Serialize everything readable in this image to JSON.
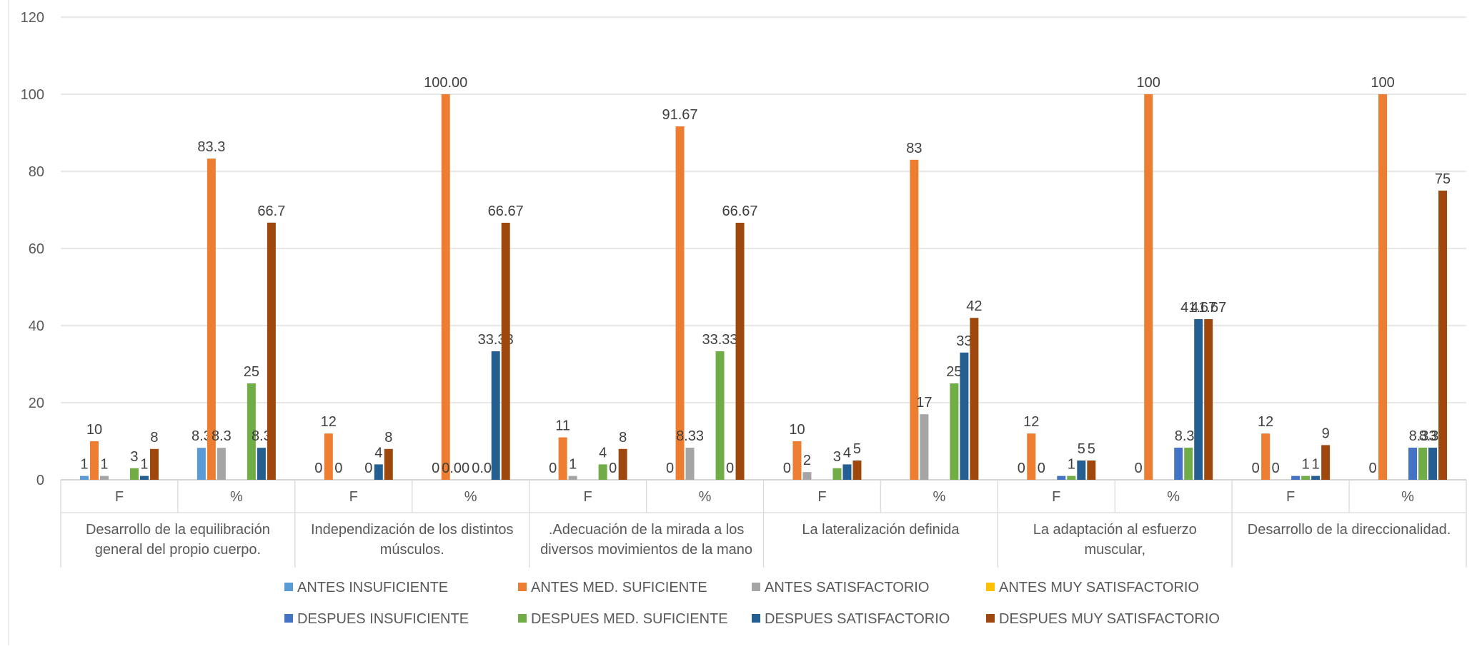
{
  "chart_data": {
    "type": "bar",
    "title": "",
    "xlabel": "",
    "ylabel": "",
    "ylim": [
      0,
      120
    ],
    "yticks": [
      "0",
      "20",
      "40",
      "60",
      "80",
      "100",
      "120"
    ],
    "grid": true,
    "legend_position": "bottom",
    "groups": [
      {
        "name": "Desarrollo de la equilibración general del propio cuerpo.",
        "lines": [
          "Desarrollo de la equilibración",
          "general del propio cuerpo."
        ]
      },
      {
        "name": "Independización de los distintos músculos.",
        "lines": [
          "Independización de los distintos",
          "músculos."
        ]
      },
      {
        "name": ".Adecuación de la mirada a los diversos movimientos de la mano",
        "lines": [
          ".Adecuación de la mirada a los",
          "diversos movimientos de la mano"
        ]
      },
      {
        "name": "La lateralización definida",
        "lines": [
          "La lateralización definida"
        ]
      },
      {
        "name": "La adaptación al esfuerzo muscular,",
        "lines": [
          "La adaptación al esfuerzo",
          "muscular,"
        ]
      },
      {
        "name": "Desarrollo de la direccionalidad.",
        "lines": [
          "Desarrollo de la direccionalidad."
        ]
      }
    ],
    "subcategories": [
      "F",
      "%"
    ],
    "series": [
      {
        "name": "ANTES INSUFICIENTE",
        "color": "#5B9BD5",
        "values": [
          1,
          8.3,
          0,
          0,
          0,
          0,
          0,
          0,
          0,
          0,
          0,
          0
        ],
        "labels": [
          "1",
          "8.3",
          "0",
          "0",
          "0",
          "0",
          "0",
          "",
          "0",
          "0",
          "0",
          "0"
        ]
      },
      {
        "name": "ANTES MED. SUFICIENTE",
        "color": "#ED7D31",
        "values": [
          10,
          83.3,
          12,
          100,
          11,
          91.67,
          10,
          83,
          12,
          100,
          12,
          100
        ],
        "labels": [
          "10",
          "83.3",
          "12",
          "100.00",
          "11",
          "91.67",
          "10",
          "83",
          "12",
          "100",
          "12",
          "100"
        ]
      },
      {
        "name": "ANTES SATISFACTORIO",
        "color": "#A5A5A5",
        "values": [
          1,
          8.3,
          0,
          0,
          1,
          8.33,
          2,
          17,
          0,
          0,
          0,
          0
        ],
        "labels": [
          "1",
          "8.3",
          "0",
          "0.00",
          "1",
          "8.33",
          "2",
          "17",
          "0",
          "",
          "0",
          ""
        ]
      },
      {
        "name": "ANTES MUY SATISFACTORIO",
        "color": "#FFC000",
        "values": [
          0,
          0,
          0,
          0,
          0,
          0,
          0,
          0,
          0,
          0,
          0,
          0
        ],
        "labels": [
          "",
          "",
          "",
          "",
          "",
          "",
          "",
          "",
          "",
          "",
          "",
          ""
        ]
      },
      {
        "name": "DESPUES INSUFICIENTE",
        "color": "#4472C4",
        "values": [
          0,
          0,
          0,
          0,
          0,
          0,
          0,
          0,
          1,
          8.33,
          1,
          8.33
        ],
        "labels": [
          "",
          "",
          "",
          "",
          "",
          "",
          "",
          "",
          "",
          "",
          "",
          ""
        ]
      },
      {
        "name": "DESPUES MED. SUFICIENTE",
        "color": "#70AD47",
        "values": [
          3,
          25,
          0,
          0,
          4,
          33.33,
          3,
          25,
          1,
          8.33,
          1,
          8.33
        ],
        "labels": [
          "3",
          "25",
          "0",
          "0.00",
          "4",
          "33.33",
          "3",
          "25",
          "1",
          "8.33",
          "1",
          "8.33"
        ]
      },
      {
        "name": "DESPUES SATISFACTORIO",
        "color": "#255E91",
        "values": [
          1,
          8.3,
          4,
          33.33,
          0,
          0,
          4,
          33,
          5,
          41.67,
          1,
          8.33
        ],
        "labels": [
          "1",
          "8.3",
          "4",
          "33.33",
          "0",
          "0",
          "4",
          "33",
          "5",
          "41.67",
          "1",
          "8.33"
        ]
      },
      {
        "name": "DESPUES MUY SATISFACTORIO",
        "color": "#9E480E",
        "values": [
          8,
          66.7,
          8,
          66.67,
          8,
          66.67,
          5,
          42,
          5,
          41.67,
          9,
          75
        ],
        "labels": [
          "8",
          "66.7",
          "8",
          "66.67",
          "8",
          "66.67",
          "5",
          "42",
          "5",
          "41.67",
          "9",
          "75"
        ]
      }
    ]
  }
}
